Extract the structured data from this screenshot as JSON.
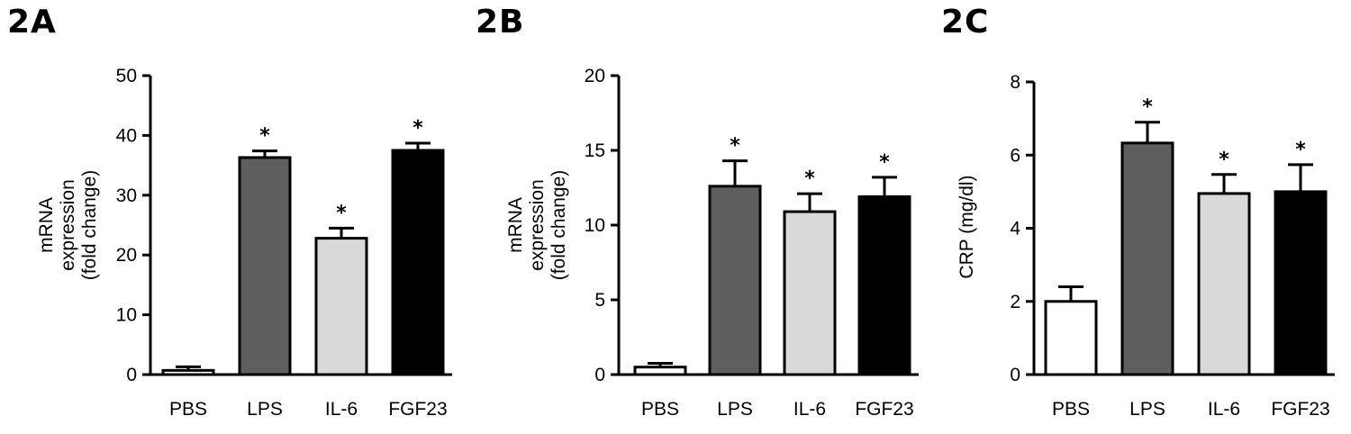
{
  "chart_data": [
    {
      "panel": "2A",
      "type": "bar",
      "categories": [
        "PBS",
        "LPS",
        "IL-6",
        "FGF23"
      ],
      "series": [
        {
          "values": [
            0.7,
            36.3,
            22.8,
            37.5
          ],
          "errors": [
            0.6,
            1.1,
            1.7,
            1.2
          ],
          "colors": [
            "#ffffff",
            "#5f5f5f",
            "#d9d9d9",
            "#000000"
          ],
          "significance": [
            "",
            "*",
            "*",
            "*"
          ]
        }
      ],
      "ylabel_lines": [
        "mRNA",
        "expression",
        "(fold change)"
      ],
      "ylim": [
        0,
        50
      ],
      "yticks": [
        0,
        10,
        20,
        30,
        40,
        50
      ],
      "grid": false
    },
    {
      "panel": "2B",
      "type": "bar",
      "categories": [
        "PBS",
        "LPS",
        "IL-6",
        "FGF23"
      ],
      "series": [
        {
          "values": [
            0.5,
            12.6,
            10.9,
            11.9
          ],
          "errors": [
            0.25,
            1.7,
            1.2,
            1.3
          ],
          "colors": [
            "#ffffff",
            "#5f5f5f",
            "#d9d9d9",
            "#000000"
          ],
          "significance": [
            "",
            "*",
            "*",
            "*"
          ]
        }
      ],
      "ylabel_lines": [
        "mRNA",
        "expression",
        "(fold change)"
      ],
      "ylim": [
        0,
        20
      ],
      "yticks": [
        0,
        5,
        10,
        15,
        20
      ],
      "grid": false
    },
    {
      "panel": "2C",
      "type": "bar",
      "categories": [
        "PBS",
        "LPS",
        "IL-6",
        "FGF23"
      ],
      "series": [
        {
          "values": [
            2.0,
            6.33,
            4.95,
            5.0
          ],
          "errors": [
            0.4,
            0.57,
            0.52,
            0.74
          ],
          "colors": [
            "#ffffff",
            "#5f5f5f",
            "#d9d9d9",
            "#000000"
          ],
          "significance": [
            "",
            "*",
            "*",
            "*"
          ]
        }
      ],
      "ylabel_lines": [
        "CRP (mg/dl)"
      ],
      "ylim": [
        0,
        8
      ],
      "yticks": [
        0,
        2,
        4,
        6,
        8
      ],
      "grid": false
    }
  ]
}
